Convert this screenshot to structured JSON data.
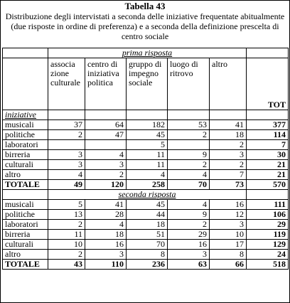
{
  "header": {
    "title": "Tabella 43",
    "caption": "Distribuzione degli intervistati a seconda delle iniziative frequentate abitualmente (due risposte in ordine di preferenza) e a seconda della definizione prescelta di centro sociale"
  },
  "table": {
    "columns": [
      "associa zione culturale",
      "centro di iniziativa politica",
      "gruppo di impegno sociale",
      "luogo di ritrovo",
      "altro",
      "TOT"
    ],
    "sections": [
      {
        "heading": "prima risposta",
        "group": "iniziative",
        "rows": [
          {
            "label": "musicali",
            "values": [
              37,
              64,
              182,
              53,
              41,
              377
            ]
          },
          {
            "label": "politiche",
            "values": [
              2,
              47,
              45,
              2,
              18,
              114
            ]
          },
          {
            "label": "laboratori",
            "values": [
              null,
              null,
              5,
              null,
              2,
              7
            ]
          },
          {
            "label": "birreria",
            "values": [
              3,
              4,
              11,
              9,
              3,
              30
            ]
          },
          {
            "label": "culturali",
            "values": [
              3,
              3,
              11,
              2,
              2,
              21
            ]
          },
          {
            "label": "altro",
            "values": [
              4,
              2,
              4,
              4,
              7,
              21
            ]
          }
        ],
        "total": {
          "label": "TOTALE",
          "values": [
            49,
            120,
            258,
            70,
            73,
            570
          ]
        }
      },
      {
        "heading": "seconda risposta",
        "rows": [
          {
            "label": "musicali",
            "values": [
              5,
              41,
              45,
              4,
              16,
              111
            ]
          },
          {
            "label": "politiche",
            "values": [
              13,
              28,
              44,
              9,
              12,
              106
            ]
          },
          {
            "label": "laboratori",
            "values": [
              2,
              4,
              18,
              2,
              3,
              29
            ]
          },
          {
            "label": "birreria",
            "values": [
              11,
              18,
              51,
              29,
              10,
              119
            ]
          },
          {
            "label": "culturali",
            "values": [
              10,
              16,
              70,
              16,
              17,
              129
            ]
          },
          {
            "label": "altro",
            "values": [
              2,
              3,
              8,
              3,
              8,
              24
            ]
          }
        ],
        "total": {
          "label": "TOTALE",
          "values": [
            43,
            110,
            236,
            63,
            66,
            518
          ]
        }
      }
    ]
  }
}
